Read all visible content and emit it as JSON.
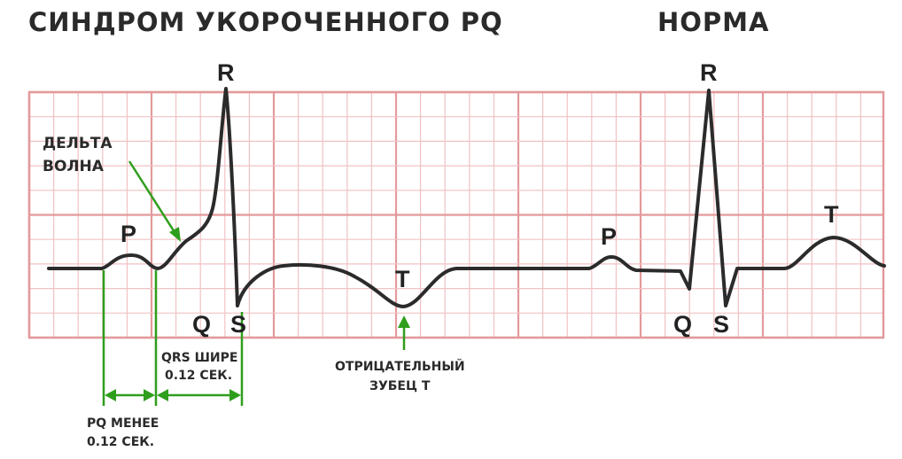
{
  "titles": {
    "left": "СИНДРОМ УКОРОЧЕННОГО PQ",
    "right": "НОРМА"
  },
  "labels": {
    "r_left": "R",
    "r_right": "R",
    "p_left": "P",
    "p_right": "P",
    "t_left": "T",
    "t_right": "T",
    "q_left": "Q",
    "s_left": "S",
    "q_right": "Q",
    "s_right": "S"
  },
  "annotations": {
    "delta_line1": "ДЕЛЬТА",
    "delta_line2": "ВОЛНА",
    "qrs_line1": "QRS ШИРЕ",
    "qrs_line2": "0.12 СЕК.",
    "pq_line1": "PQ МЕНЕЕ",
    "pq_line2": "0.12 СЕК.",
    "neg_t_line1": "ОТРИЦАТЕЛЬНЫЙ",
    "neg_t_line2": "ЗУБЕЦ Т"
  },
  "colors": {
    "grid_major": "#e3999b",
    "grid_minor": "#f0c2c4",
    "trace": "#2b2b2b",
    "annotation": "#2f9e1c",
    "text": "#222222"
  }
}
